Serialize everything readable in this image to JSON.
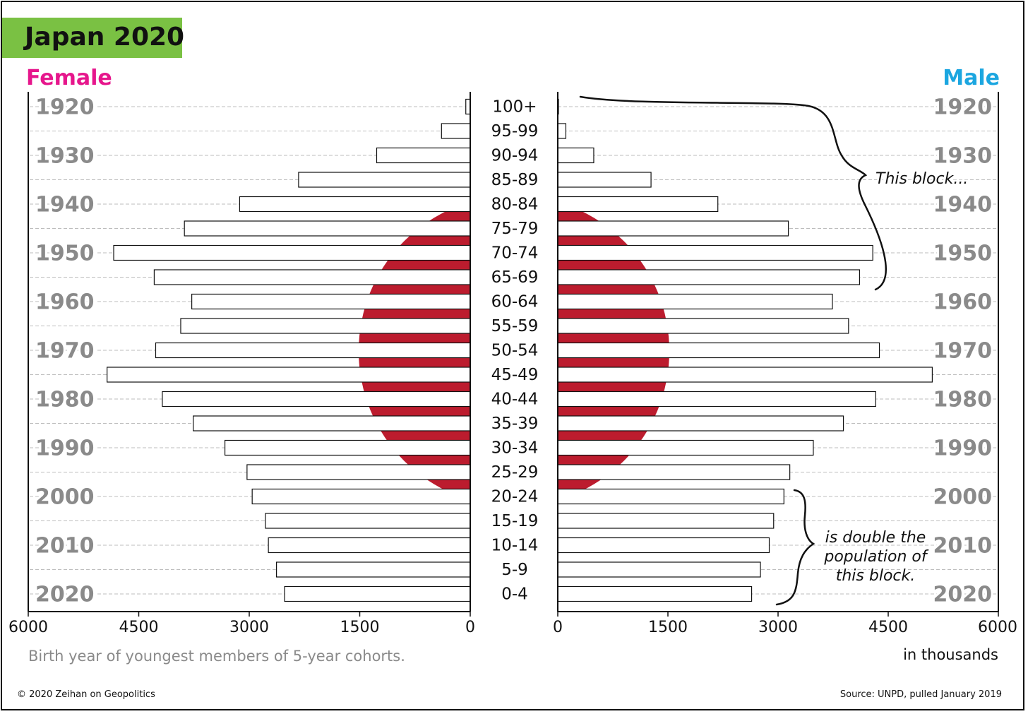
{
  "header": {
    "title": "Japan 2020",
    "female_label": "Female",
    "male_label": "Male"
  },
  "footer": {
    "note": "Birth year of youngest members of 5-year cohorts.",
    "units": "in thousands",
    "copyright": "© 2020 Zeihan on Geopolitics",
    "source": "Source: UNPD, pulled January 2019"
  },
  "colors": {
    "title_bg": "#7ac143",
    "female": "#e6168c",
    "male": "#1ba6e0",
    "sun": "#bc1c2e",
    "year_label": "#8a8a8a"
  },
  "annotations": {
    "top_bracket": "This block...",
    "bottom_bracket": [
      "is double the",
      "population of",
      "this block."
    ]
  },
  "chart_data": {
    "type": "bar",
    "orientation": "horizontal",
    "title": "Japan 2020",
    "categories": [
      "100+",
      "95-99",
      "90-94",
      "85-89",
      "80-84",
      "75-79",
      "70-74",
      "65-69",
      "60-64",
      "55-59",
      "50-54",
      "45-49",
      "40-44",
      "35-39",
      "30-34",
      "25-29",
      "20-24",
      "15-19",
      "10-14",
      "5-9",
      "0-4"
    ],
    "series": [
      {
        "name": "Female",
        "values": [
          60,
          390,
          1270,
          2330,
          3130,
          3880,
          4840,
          4290,
          3780,
          3930,
          4270,
          4930,
          4180,
          3760,
          3330,
          3030,
          2960,
          2780,
          2740,
          2630,
          2520
        ]
      },
      {
        "name": "Male",
        "values": [
          10,
          110,
          490,
          1270,
          2180,
          3140,
          4290,
          4110,
          3740,
          3960,
          4380,
          5100,
          4330,
          3890,
          3480,
          3160,
          3080,
          2940,
          2880,
          2760,
          2640
        ]
      }
    ],
    "birth_year_labels": [
      "1920",
      "1930",
      "1940",
      "1950",
      "1960",
      "1970",
      "1980",
      "1990",
      "2000",
      "2010",
      "2020"
    ],
    "female_axis_ticks": [
      "6000",
      "4500",
      "3000",
      "1500",
      "0"
    ],
    "male_axis_ticks": [
      "0",
      "1500",
      "3000",
      "4500",
      "6000"
    ],
    "xlim": [
      0,
      6000
    ],
    "xlabel": "in thousands",
    "grid": true
  }
}
